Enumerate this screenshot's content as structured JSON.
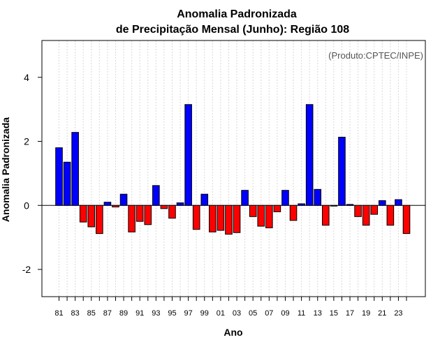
{
  "chart_data": {
    "type": "bar",
    "title": "Anomalia Padronizada",
    "subtitle": "de Precipitação Mensal (Junho): Região 108",
    "xlabel": "Ano",
    "ylabel": "Anomalia Padronizada",
    "annotation": "(Produto:CPTEC/INPE)",
    "ylim": [
      -2.85,
      5.15
    ],
    "yticks": [
      -2,
      0,
      2,
      4
    ],
    "grid": "vertical dotted",
    "positive_color": "#0000ff",
    "negative_color": "#ff0000",
    "categories": [
      "81",
      "82",
      "83",
      "84",
      "85",
      "86",
      "87",
      "88",
      "89",
      "90",
      "91",
      "92",
      "93",
      "94",
      "95",
      "96",
      "97",
      "98",
      "99",
      "00",
      "01",
      "02",
      "03",
      "04",
      "05",
      "06",
      "07",
      "08",
      "09",
      "10",
      "11",
      "12",
      "13",
      "14",
      "15",
      "16",
      "17",
      "18",
      "19",
      "20",
      "21",
      "22",
      "23",
      "24"
    ],
    "tick_labels": [
      "81",
      "",
      "83",
      "",
      "85",
      "",
      "87",
      "",
      "89",
      "",
      "91",
      "",
      "93",
      "",
      "95",
      "",
      "97",
      "",
      "99",
      "",
      "01",
      "",
      "03",
      "",
      "05",
      "",
      "07",
      "",
      "09",
      "",
      "11",
      "",
      "13",
      "",
      "15",
      "",
      "17",
      "",
      "19",
      "",
      "21",
      "",
      "23",
      ""
    ],
    "values": [
      1.8,
      1.35,
      2.28,
      -0.52,
      -0.67,
      -0.88,
      0.1,
      -0.05,
      0.35,
      -0.83,
      -0.5,
      -0.6,
      0.62,
      -0.1,
      -0.4,
      0.08,
      3.15,
      -0.75,
      0.35,
      -0.83,
      -0.78,
      -0.9,
      -0.85,
      0.47,
      -0.35,
      -0.65,
      -0.7,
      -0.2,
      0.47,
      -0.47,
      0.05,
      3.15,
      0.5,
      -0.62,
      -0.02,
      2.13,
      0.03,
      -0.35,
      -0.62,
      -0.28,
      0.15,
      -0.62,
      0.18,
      -0.88
    ]
  }
}
